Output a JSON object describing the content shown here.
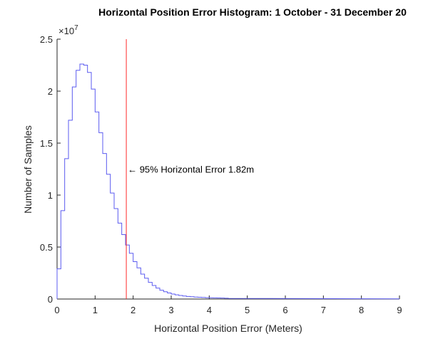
{
  "chart_data": {
    "type": "histogram",
    "title": "Horizontal Position Error Histogram: 1 October - 31 December 20",
    "xlabel": "Horizontal Position Error (Meters)",
    "ylabel": "Number of Samples",
    "xlim": [
      0,
      9
    ],
    "ylim": [
      0,
      2.5
    ],
    "y_exponent_label": "×10",
    "y_exponent_power": "7",
    "x_ticks": [
      "0",
      "1",
      "2",
      "3",
      "4",
      "5",
      "6",
      "7",
      "8",
      "9"
    ],
    "y_ticks": [
      "0",
      "0.5",
      "1",
      "1.5",
      "2",
      "2.5"
    ],
    "bin_width": 0.1,
    "bin_start": 0.0,
    "counts": [
      0.29,
      0.85,
      1.35,
      1.72,
      2.04,
      2.2,
      2.26,
      2.25,
      2.18,
      2.02,
      1.8,
      1.6,
      1.4,
      1.2,
      1.02,
      0.87,
      0.73,
      0.62,
      0.52,
      0.44,
      0.36,
      0.3,
      0.24,
      0.2,
      0.16,
      0.13,
      0.105,
      0.085,
      0.07,
      0.058,
      0.048,
      0.04,
      0.034,
      0.029,
      0.025,
      0.022,
      0.019,
      0.017,
      0.015,
      0.013,
      0.012,
      0.011,
      0.01,
      0.009,
      0.008
    ],
    "tail_value": 0.006,
    "tail_end_value": 0.002,
    "series_color": "#5B5BF0",
    "threshold": {
      "x": 1.82,
      "color": "#FF2A2A",
      "label": "95% Horizontal Error 1.82m",
      "label_y": 1.25
    },
    "grid": false
  }
}
